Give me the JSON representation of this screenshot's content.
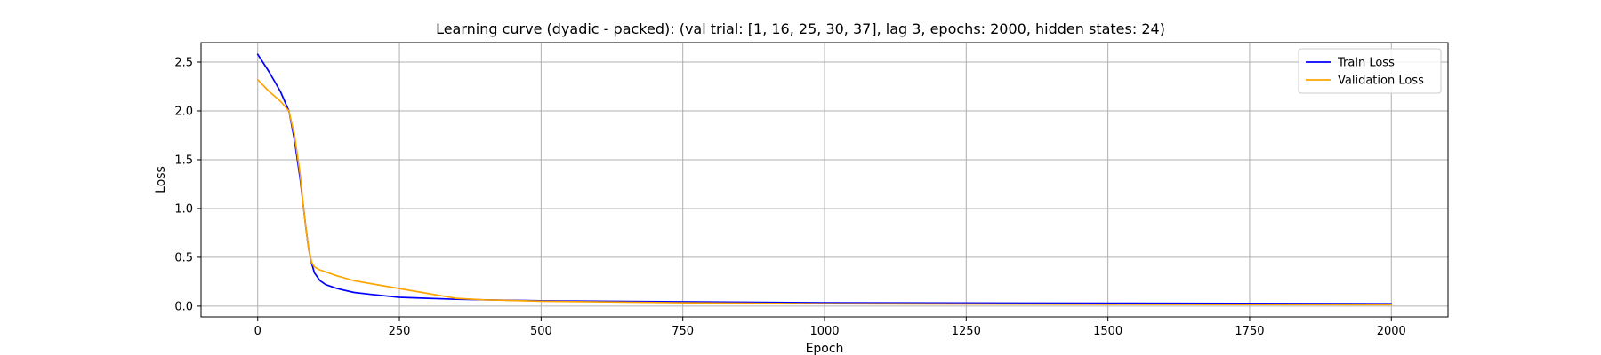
{
  "chart_data": {
    "type": "line",
    "title": "Learning curve (dyadic - packed): (val trial: [1, 16, 25, 30, 37], lag 3, epochs: 2000, hidden states: 24)",
    "xlabel": "Epoch",
    "ylabel": "Loss",
    "xlim": [
      -100,
      2100
    ],
    "ylim": [
      -0.11,
      2.7
    ],
    "xticks": [
      0,
      250,
      500,
      750,
      1000,
      1250,
      1500,
      1750,
      2000
    ],
    "xtick_labels": [
      "0",
      "250",
      "500",
      "750",
      "1000",
      "1250",
      "1500",
      "1750",
      "2000"
    ],
    "yticks": [
      0.0,
      0.5,
      1.0,
      1.5,
      2.0,
      2.5
    ],
    "ytick_labels": [
      "0.0",
      "0.5",
      "1.0",
      "1.5",
      "2.0",
      "2.5"
    ],
    "grid": true,
    "legend_position": "top-right",
    "series": [
      {
        "name": "Train Loss",
        "color": "#0000ff",
        "x": [
          0,
          20,
          40,
          55,
          65,
          75,
          80,
          85,
          90,
          95,
          100,
          110,
          120,
          140,
          170,
          200,
          250,
          300,
          350,
          400,
          500,
          750,
          1000,
          1500,
          2000
        ],
        "y": [
          2.58,
          2.4,
          2.2,
          2.0,
          1.7,
          1.3,
          1.05,
          0.8,
          0.58,
          0.44,
          0.34,
          0.26,
          0.22,
          0.18,
          0.14,
          0.12,
          0.09,
          0.08,
          0.07,
          0.065,
          0.055,
          0.045,
          0.035,
          0.03,
          0.025
        ]
      },
      {
        "name": "Validation Loss",
        "color": "#ffa500",
        "x": [
          0,
          20,
          40,
          55,
          65,
          75,
          80,
          85,
          90,
          95,
          100,
          110,
          120,
          140,
          170,
          200,
          250,
          300,
          350,
          400,
          500,
          750,
          1000,
          1500,
          2000
        ],
        "y": [
          2.32,
          2.2,
          2.1,
          2.0,
          1.75,
          1.35,
          1.05,
          0.8,
          0.58,
          0.45,
          0.4,
          0.37,
          0.35,
          0.31,
          0.26,
          0.23,
          0.18,
          0.13,
          0.08,
          0.065,
          0.05,
          0.035,
          0.025,
          0.018,
          0.015
        ]
      }
    ]
  }
}
